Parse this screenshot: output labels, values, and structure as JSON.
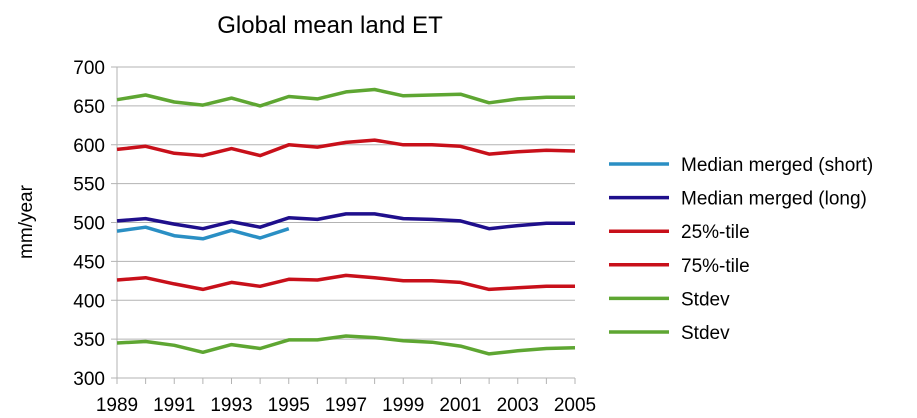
{
  "chart_data": {
    "type": "line",
    "title": "Global mean land ET",
    "xlabel": "",
    "ylabel": "mm/year",
    "x": [
      1989,
      1990,
      1991,
      1992,
      1993,
      1994,
      1995,
      1996,
      1997,
      1998,
      1999,
      2000,
      2001,
      2002,
      2003,
      2004,
      2005
    ],
    "xticks": [
      "1989",
      "1991",
      "1993",
      "1995",
      "1997",
      "1999",
      "2001",
      "2003",
      "2005"
    ],
    "yticks": [
      "300",
      "350",
      "400",
      "450",
      "500",
      "550",
      "600",
      "650",
      "700"
    ],
    "ylim": [
      300,
      700
    ],
    "grid": "horizontal",
    "legend_position": "right",
    "series": [
      {
        "name": "Median merged (short)",
        "color": "#2a8fc4",
        "values": [
          489,
          494,
          483,
          479,
          490,
          480,
          492,
          null,
          null,
          null,
          null,
          null,
          null,
          null,
          null,
          null,
          null
        ]
      },
      {
        "name": "Median merged (long)",
        "color": "#1f0f8c",
        "values": [
          502,
          505,
          498,
          492,
          501,
          494,
          506,
          504,
          511,
          511,
          505,
          504,
          502,
          492,
          496,
          499,
          499
        ]
      },
      {
        "name": "25%-tile",
        "color": "#c8101a",
        "values": [
          426,
          429,
          421,
          414,
          423,
          418,
          427,
          426,
          432,
          429,
          425,
          425,
          423,
          414,
          416,
          418,
          418
        ]
      },
      {
        "name": "75%-tile",
        "color": "#c8101a",
        "values": [
          594,
          598,
          589,
          586,
          595,
          586,
          600,
          597,
          603,
          606,
          600,
          600,
          598,
          588,
          591,
          593,
          592
        ]
      },
      {
        "name": "Stdev",
        "color": "#5ea632",
        "values": [
          345,
          347,
          342,
          333,
          343,
          338,
          349,
          349,
          354,
          352,
          348,
          346,
          341,
          331,
          335,
          338,
          339
        ]
      },
      {
        "name": "Stdev",
        "color": "#5ea632",
        "values": [
          658,
          664,
          655,
          651,
          660,
          650,
          662,
          659,
          668,
          671,
          663,
          664,
          665,
          654,
          659,
          661,
          661
        ]
      }
    ]
  }
}
